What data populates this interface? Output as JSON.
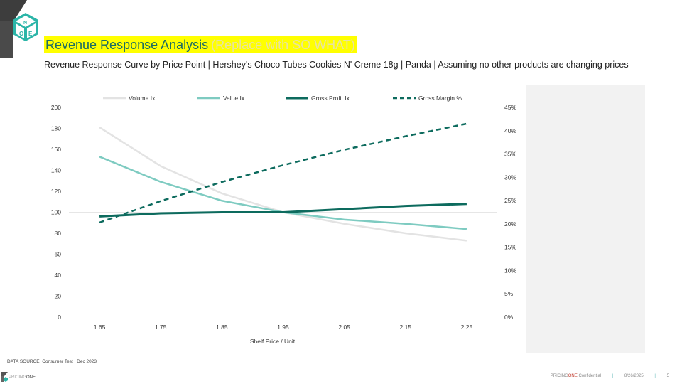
{
  "header": {
    "title": "Revenue Response Analysis",
    "title_note": "(Replace with SO WHAT)",
    "subtitle": "Revenue Response Curve by Price Point | Hershey's Choco Tubes Cookies N' Creme 18g | Panda | Assuming no other products are changing prices"
  },
  "logo": {
    "letters": "ONE"
  },
  "chart_data": {
    "type": "line",
    "x": [
      "1.65",
      "1.75",
      "1.85",
      "1.95",
      "2.05",
      "2.15",
      "2.25"
    ],
    "xlabel": "Shelf Price / Unit",
    "ylabel": "",
    "ylim": [
      0,
      200
    ],
    "y_ticks": [
      "0",
      "20",
      "40",
      "60",
      "80",
      "100",
      "120",
      "140",
      "160",
      "180",
      "200"
    ],
    "y2lim": [
      0,
      45
    ],
    "y2_ticks": [
      "0%",
      "5%",
      "10%",
      "15%",
      "20%",
      "25%",
      "30%",
      "35%",
      "40%",
      "45%"
    ],
    "reference_line": 100,
    "legend_position": "top",
    "series": [
      {
        "name": "Volume Ix",
        "axis": "left",
        "color": "#e3e3e3",
        "dash": false,
        "width": 2.5,
        "values": [
          181,
          144,
          118,
          100,
          89,
          80,
          73
        ]
      },
      {
        "name": "Value Ix",
        "axis": "left",
        "color": "#7ecbc1",
        "dash": false,
        "width": 2.5,
        "values": [
          153,
          129,
          111,
          100,
          93,
          89,
          84
        ]
      },
      {
        "name": "Gross Profit Ix",
        "axis": "left",
        "color": "#0d6b5e",
        "dash": false,
        "width": 3,
        "values": [
          96,
          99,
          100,
          100,
          103,
          106,
          108
        ]
      },
      {
        "name": "Gross Margin %",
        "axis": "right",
        "color": "#0d6b5e",
        "dash": true,
        "width": 2.5,
        "values": [
          20.3,
          24.9,
          29.0,
          32.6,
          35.9,
          38.8,
          41.5
        ]
      }
    ]
  },
  "footer": {
    "datasource": "DATA SOURCE: Consumer Test | Dec 2023",
    "brand_prefix": "PRICING",
    "brand_suffix": "ONE",
    "confidential": "Confidential",
    "date": "8/26/2025",
    "page": "5"
  }
}
